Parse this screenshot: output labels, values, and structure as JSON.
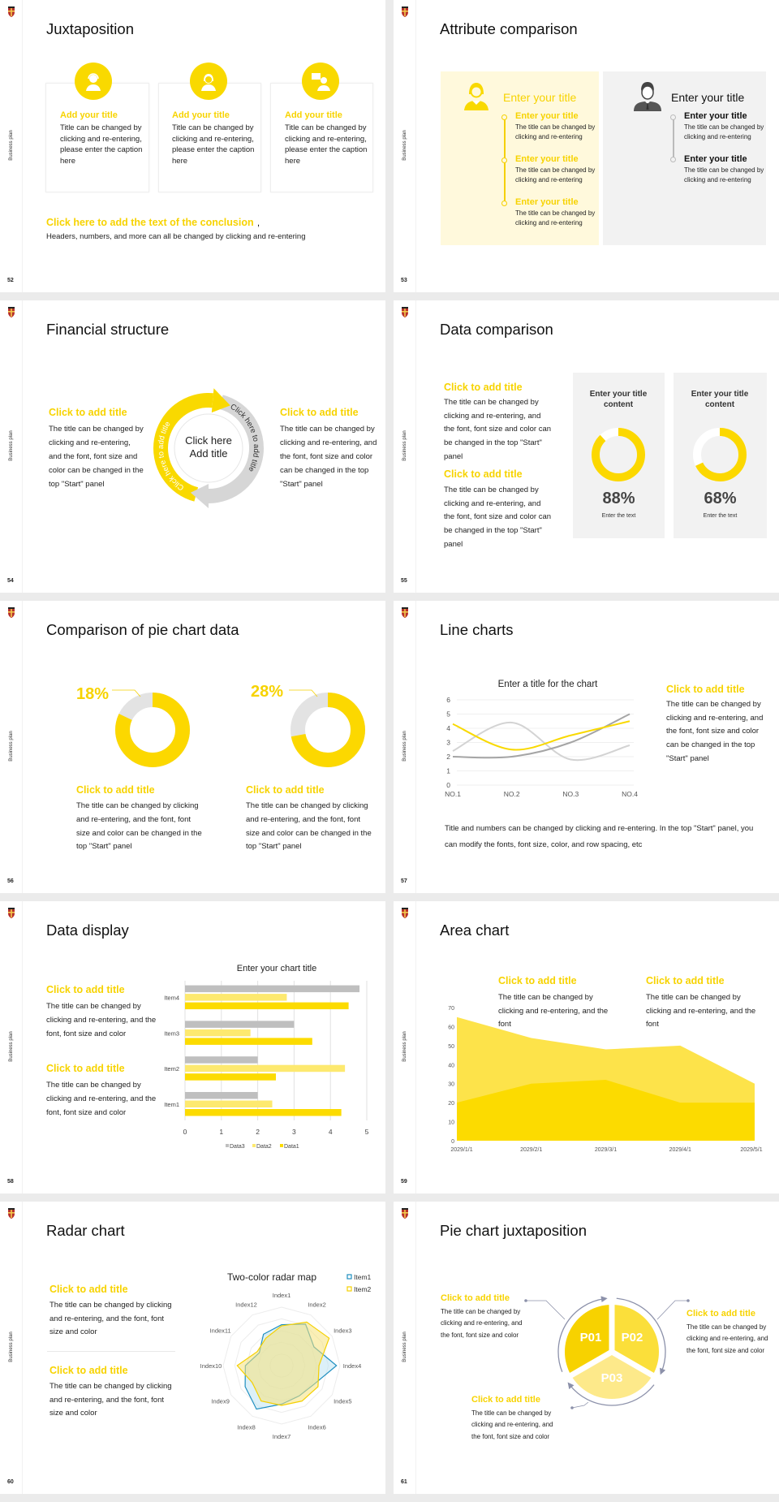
{
  "colors": {
    "accent": "#f9d900",
    "accent_light": "#fde873",
    "title_yellow": "#f7d300",
    "gray": "#bfbfbf",
    "panel_yellow": "#fff9dc",
    "panel_gray": "#f2f2f2",
    "radar_item1": "#1f8fc0",
    "radar_item2": "#f5d000"
  },
  "sidebar_label": "Business plan",
  "logo_icon": "university-crest-logo",
  "slides": [
    {
      "page": "52",
      "title": "Juxtaposition",
      "cards": [
        {
          "icon": "customer-service-icon",
          "title": "Add your title",
          "body": "Title can be changed by clicking and re-entering, please enter the caption here"
        },
        {
          "icon": "female-user-icon",
          "title": "Add your title",
          "body": "Title can be changed by clicking and re-entering, please enter the caption here"
        },
        {
          "icon": "presenter-icon",
          "title": "Add your title",
          "body": "Title can be changed by clicking and re-entering, please enter the caption here"
        }
      ],
      "conclusion_title": "Click here to add the text of the conclusion",
      "conclusion_comma": ",",
      "conclusion_body": "Headers, numbers, and more can all be changed by clicking and re-entering"
    },
    {
      "page": "53",
      "title": "Attribute comparison",
      "left": {
        "icon": "female-user-icon",
        "heading": "Enter your title",
        "items": [
          {
            "title": "Enter your title",
            "body": "The title can be changed by clicking and re-entering"
          },
          {
            "title": "Enter your title",
            "body": "The title can be changed by clicking and re-entering"
          },
          {
            "title": "Enter your title",
            "body": "The title can be changed by clicking and re-entering"
          }
        ]
      },
      "right": {
        "icon": "businessman-icon",
        "heading": "Enter your title",
        "items": [
          {
            "title": "Enter your title",
            "body": "The title can be changed by clicking and re-entering"
          },
          {
            "title": "Enter your title",
            "body": "The title can be changed by clicking and re-entering"
          }
        ]
      }
    },
    {
      "page": "54",
      "title": "Financial structure",
      "left": {
        "title": "Click to add title",
        "body": "The title can be changed by clicking and re-entering, and the font, font size and color can be changed in the top \"Start\" panel"
      },
      "right": {
        "title": "Click to add title",
        "body": "The title can be changed by clicking and re-entering, and the font, font size and color can be changed in the top \"Start\" panel"
      },
      "center_line1": "Click here",
      "center_line2": "Add title",
      "arc_label_yellow": "Click here to add title",
      "arc_label_gray": "Click here to add title"
    },
    {
      "page": "55",
      "title": "Data comparison",
      "blocks": [
        {
          "title": "Click to add title",
          "body": "The title can be changed by clicking and re-entering, and the font, font size and color can be changed in the top \"Start\" panel"
        },
        {
          "title": "Click to add title",
          "body": "The title can be changed by clicking and re-entering, and the font, font size and color can be changed in the top \"Start\" panel"
        }
      ],
      "cards": [
        {
          "title": "Enter your title content",
          "percent": 88,
          "label": "88%",
          "caption": "Enter the text"
        },
        {
          "title": "Enter your title content",
          "percent": 68,
          "label": "68%",
          "caption": "Enter the text"
        }
      ]
    },
    {
      "page": "56",
      "title": "Comparison of pie chart data",
      "donuts": [
        {
          "percent": 18,
          "label": "18%",
          "title": "Click to add title",
          "body": "The title can be changed by clicking and re-entering, and the font, font size and color can be changed in the top \"Start\" panel"
        },
        {
          "percent": 28,
          "label": "28%",
          "title": "Click to add title",
          "body": "The title can be changed by clicking and re-entering, and the font, font size and color can be changed in the top \"Start\" panel"
        }
      ]
    },
    {
      "page": "57",
      "title": "Line charts",
      "side_title": "Click to add title",
      "side_body": "The title can be changed by clicking and re-entering, and the font, font size and color can be changed in the top \"Start\" panel",
      "footer": "Title and numbers can be changed by clicking and re-entering. In the top \"Start\" panel, you can modify the fonts, font size, color, and row spacing, etc"
    },
    {
      "page": "58",
      "title": "Data display",
      "blocks": [
        {
          "title": "Click to add title",
          "body": "The title can be changed by clicking and re-entering, and the font, font size and color"
        },
        {
          "title": "Click to add title",
          "body": "The title can be changed by clicking and re-entering, and the font, font size and color"
        }
      ]
    },
    {
      "page": "59",
      "title": "Area chart",
      "blocks": [
        {
          "title": "Click to add title",
          "body": "The title can be changed by clicking and re-entering, and the font"
        },
        {
          "title": "Click to add title",
          "body": "The title can be changed by clicking and re-entering, and the font"
        }
      ]
    },
    {
      "page": "60",
      "title": "Radar chart",
      "blocks": [
        {
          "title": "Click to add title",
          "body": "The title can be changed by clicking and re-entering, and the font, font size and color"
        },
        {
          "title": "Click to add title",
          "body": "The title can be changed by clicking and re-entering, and the font, font size and color"
        }
      ]
    },
    {
      "page": "61",
      "title": "Pie chart juxtaposition",
      "segments": [
        {
          "label": "P01",
          "color": "#f7d200"
        },
        {
          "label": "P02",
          "color": "#fbdf3a"
        },
        {
          "label": "P03",
          "color": "#fde98a"
        }
      ],
      "blocks": [
        {
          "title": "Click to add title",
          "body": "The title can be changed by clicking and re-entering, and the font, font size and color"
        },
        {
          "title": "Click to add title",
          "body": "The title can be changed by clicking and re-entering, and the font, font size and color"
        },
        {
          "title": "Click to add title",
          "body": "The title can be changed by clicking and re-entering, and the font, font size and color"
        }
      ]
    }
  ],
  "chart_data": [
    {
      "type": "line",
      "title": "Enter a title for the chart",
      "categories": [
        "NO.1",
        "NO.2",
        "NO.3",
        "NO.4"
      ],
      "ylim": [
        0,
        6
      ],
      "yticks": [
        "0",
        "1",
        "2",
        "3",
        "4",
        "5",
        "6"
      ],
      "grid": true,
      "smooth": true,
      "series": [
        {
          "color": "#f9d900",
          "values": [
            4.3,
            2.5,
            3.5,
            4.5
          ]
        },
        {
          "color": "#d3d3d3",
          "values": [
            2.4,
            4.4,
            1.8,
            2.8
          ]
        },
        {
          "color": "#a5a5a5",
          "values": [
            2.0,
            2.0,
            3.0,
            5.0
          ]
        }
      ]
    },
    {
      "type": "bar",
      "orientation": "horizontal",
      "title": "Enter your chart title",
      "categories": [
        "Item1",
        "Item2",
        "Item3",
        "Item4"
      ],
      "xlim": [
        0,
        5
      ],
      "xticks": [
        "0",
        "1",
        "2",
        "3",
        "4",
        "5"
      ],
      "grid": true,
      "legend": "bottom",
      "series": [
        {
          "name": "Data1",
          "color": "#fcdb00",
          "values": [
            4.3,
            2.5,
            3.5,
            4.5
          ]
        },
        {
          "name": "Data2",
          "color": "#fde96f",
          "values": [
            2.4,
            4.4,
            1.8,
            2.8
          ]
        },
        {
          "name": "Data3",
          "color": "#bfbfbf",
          "values": [
            2.0,
            2.0,
            3.0,
            4.8
          ]
        }
      ]
    },
    {
      "type": "area",
      "categories": [
        "2029/1/1",
        "2029/2/1",
        "2029/3/1",
        "2029/4/1",
        "2029/5/1"
      ],
      "ylim": [
        0,
        70
      ],
      "yticks": [
        "0",
        "10",
        "20",
        "30",
        "40",
        "50",
        "60",
        "70"
      ],
      "grid": false,
      "series": [
        {
          "color": "#fde34a",
          "values": [
            65,
            54,
            48,
            50,
            30
          ]
        },
        {
          "color": "#fcdb00",
          "values": [
            20,
            30,
            32,
            20,
            20
          ]
        }
      ]
    },
    {
      "type": "radar",
      "title": "Two-color radar map",
      "legend": "top-right",
      "rmax": 5,
      "categories": [
        "Index1",
        "Index2",
        "Index3",
        "Index4",
        "Index5",
        "Index6",
        "Index7",
        "Index8",
        "Index9",
        "Index10",
        "Index11",
        "Index12"
      ],
      "series": [
        {
          "name": "Item1",
          "color": "#1f8fc0",
          "values": [
            3.5,
            4.1,
            3.2,
            4.7,
            3.2,
            3.0,
            3.3,
            4.3,
            3.6,
            3.1,
            2.2,
            3.1
          ]
        },
        {
          "name": "Item2",
          "color": "#f5d000",
          "values": [
            3.4,
            4.3,
            4.7,
            3.2,
            3.6,
            3.5,
            3.4,
            3.5,
            2.9,
            3.8,
            2.4,
            2.7
          ]
        }
      ]
    }
  ]
}
